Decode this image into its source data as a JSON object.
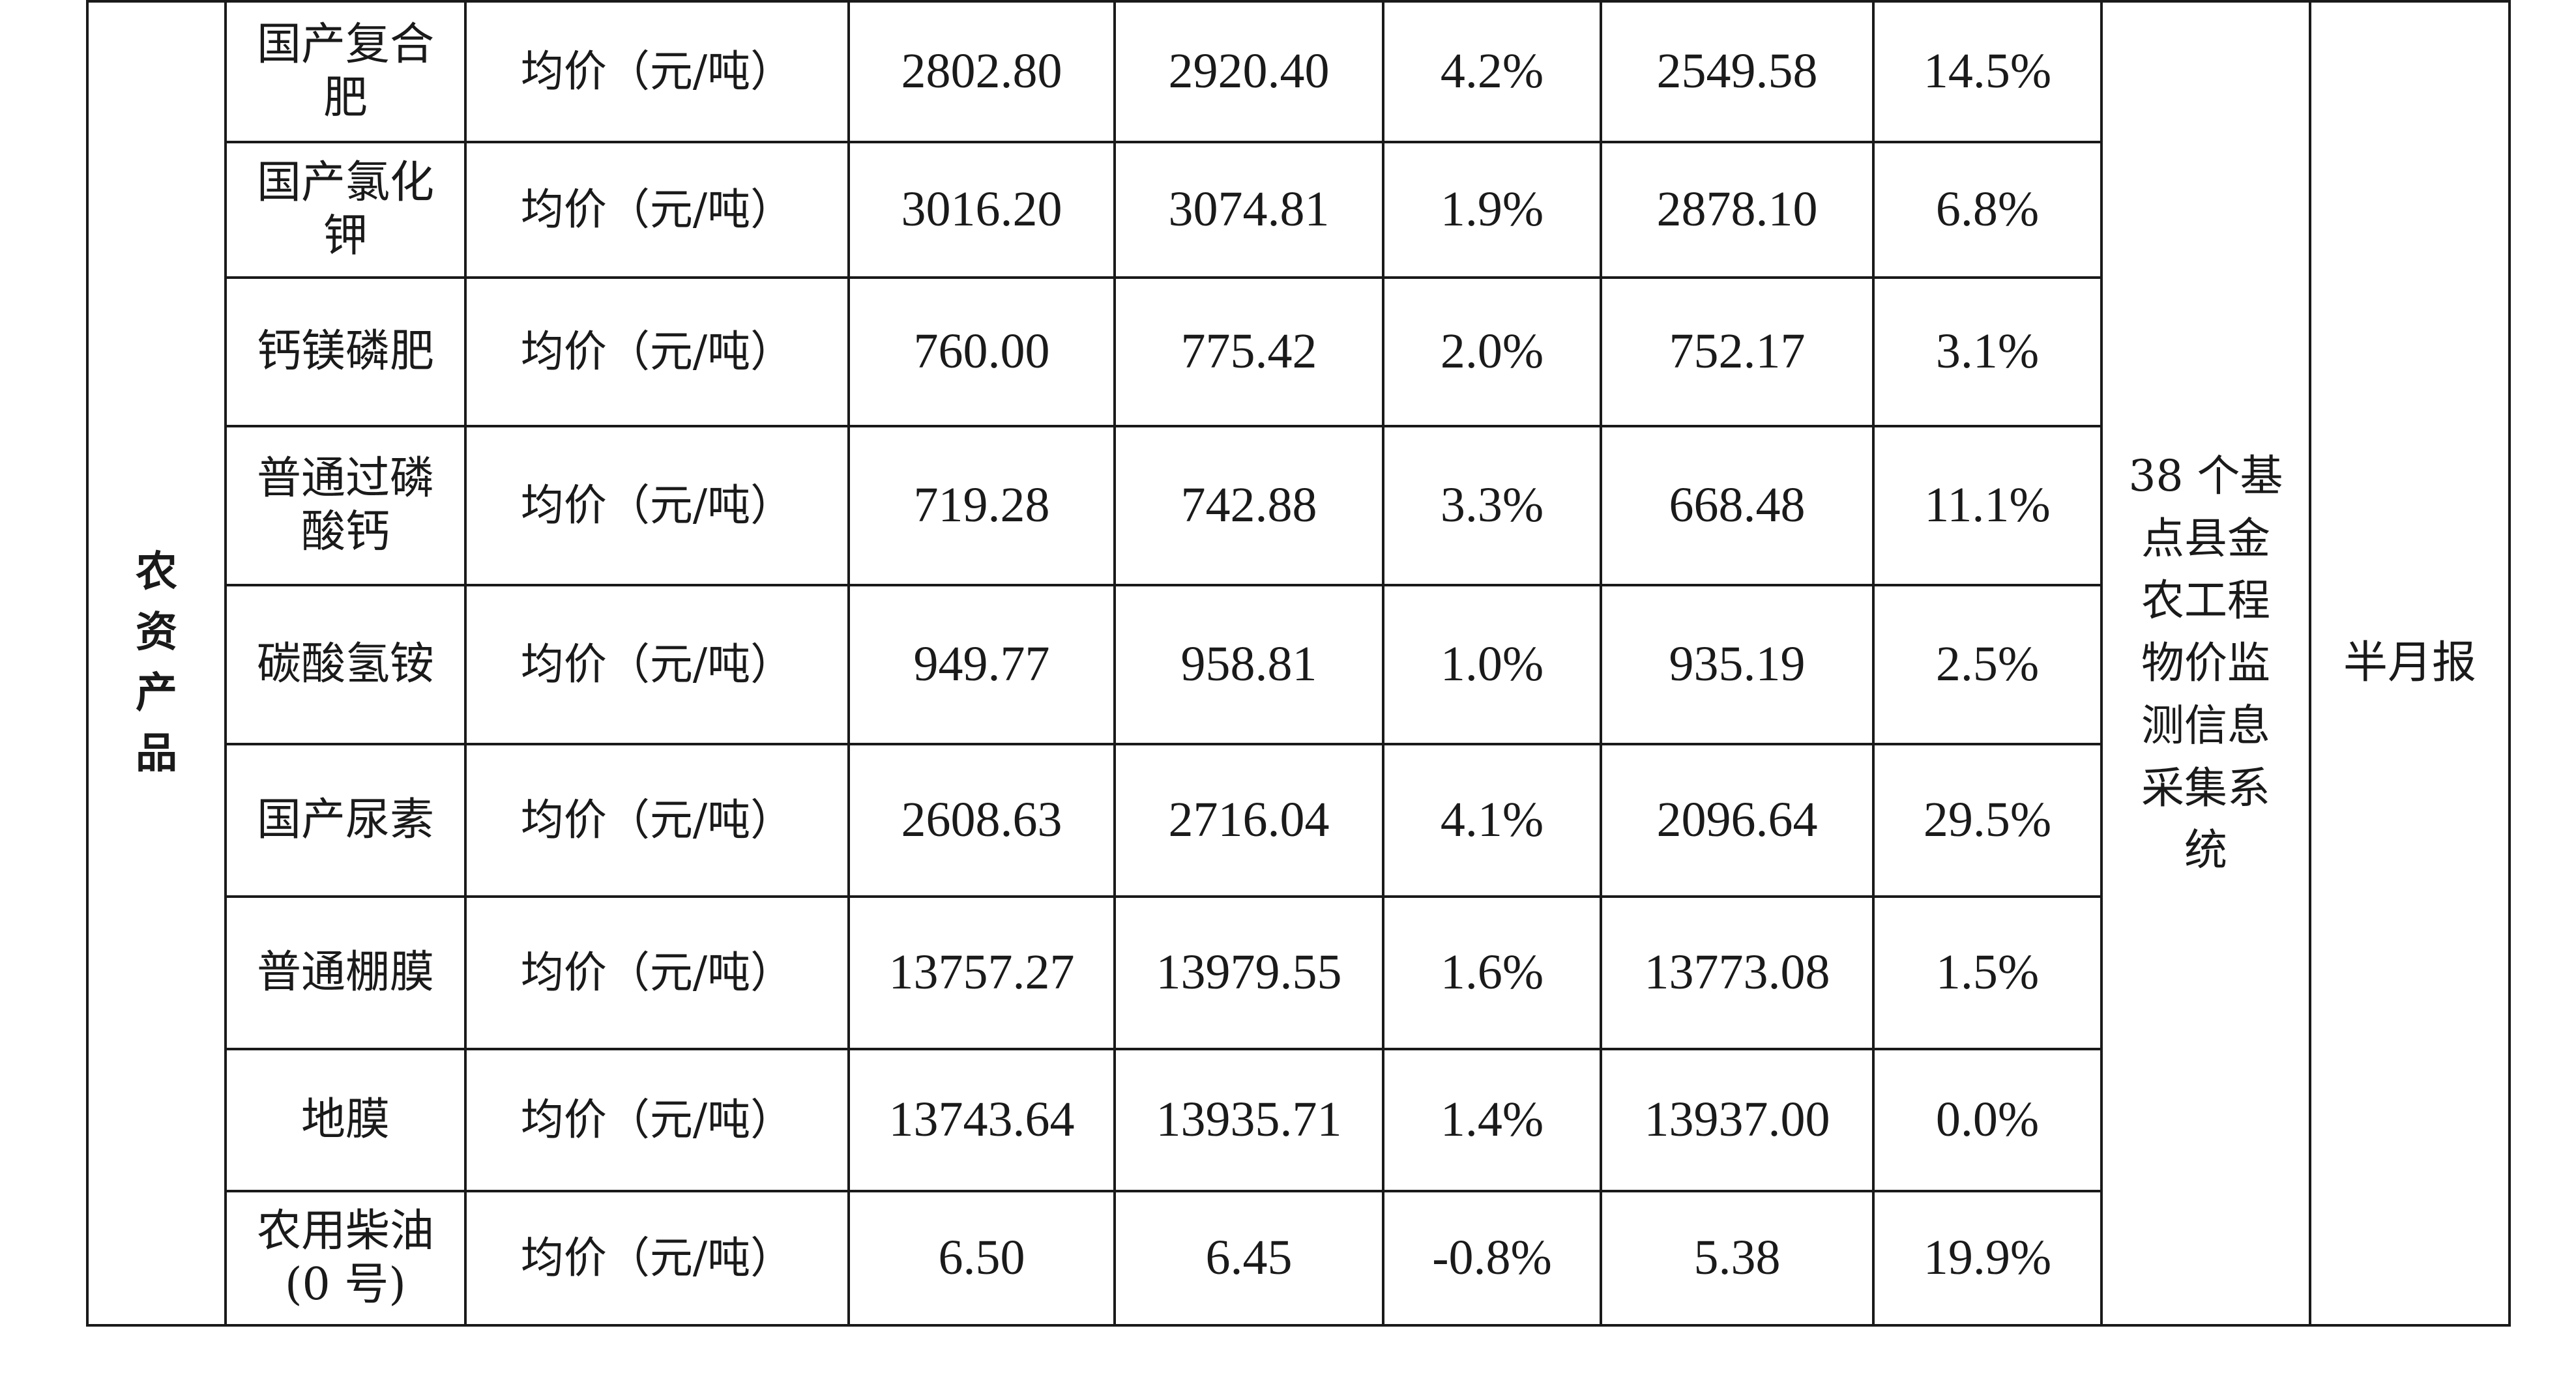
{
  "table": {
    "category": "农资产品",
    "source": "38 个基点县金农工程物价监测信息采集系统",
    "frequency": "半月报",
    "rows": [
      {
        "name": "国产复合肥",
        "unit": "均价（元/吨）",
        "v1": "2802.80",
        "v2": "2920.40",
        "pct1": "4.2%",
        "v3": "2549.58",
        "pct2": "14.5%"
      },
      {
        "name": "国产氯化钾",
        "unit": "均价（元/吨）",
        "v1": "3016.20",
        "v2": "3074.81",
        "pct1": "1.9%",
        "v3": "2878.10",
        "pct2": "6.8%"
      },
      {
        "name": "钙镁磷肥",
        "unit": "均价（元/吨）",
        "v1": "760.00",
        "v2": "775.42",
        "pct1": "2.0%",
        "v3": "752.17",
        "pct2": "3.1%"
      },
      {
        "name": "普通过磷酸钙",
        "unit": "均价（元/吨）",
        "v1": "719.28",
        "v2": "742.88",
        "pct1": "3.3%",
        "v3": "668.48",
        "pct2": "11.1%"
      },
      {
        "name": "碳酸氢铵",
        "unit": "均价（元/吨）",
        "v1": "949.77",
        "v2": "958.81",
        "pct1": "1.0%",
        "v3": "935.19",
        "pct2": "2.5%"
      },
      {
        "name": "国产尿素",
        "unit": "均价（元/吨）",
        "v1": "2608.63",
        "v2": "2716.04",
        "pct1": "4.1%",
        "v3": "2096.64",
        "pct2": "29.5%"
      },
      {
        "name": "普通棚膜",
        "unit": "均价（元/吨）",
        "v1": "13757.27",
        "v2": "13979.55",
        "pct1": "1.6%",
        "v3": "13773.08",
        "pct2": "1.5%"
      },
      {
        "name": "地膜",
        "unit": "均价（元/吨）",
        "v1": "13743.64",
        "v2": "13935.71",
        "pct1": "1.4%",
        "v3": "13937.00",
        "pct2": "0.0%"
      },
      {
        "name": "农用柴油(0 号)",
        "unit": "均价（元/吨）",
        "v1": "6.50",
        "v2": "6.45",
        "pct1": "-0.8%",
        "v3": "5.38",
        "pct2": "19.9%"
      }
    ]
  }
}
